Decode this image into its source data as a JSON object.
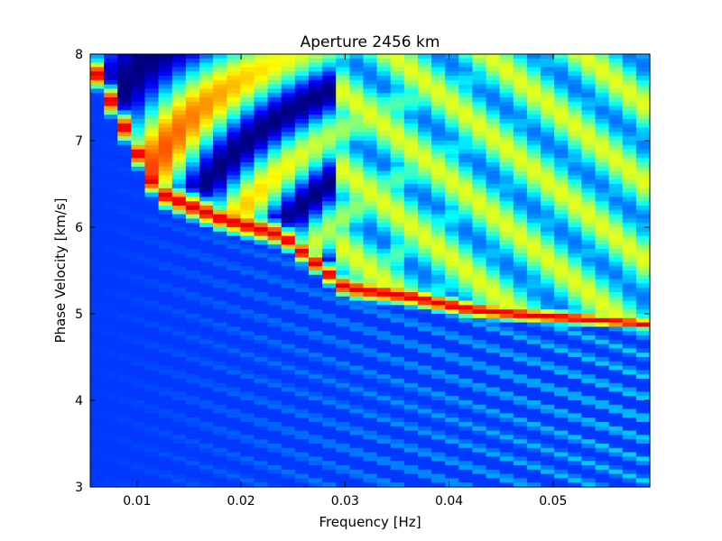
{
  "chart_data": {
    "type": "heatmap",
    "title": "Aperture 2456 km",
    "xlabel": "Frequency [Hz]",
    "ylabel": "Phase Velocity [km/s]",
    "xlim": [
      0.0055,
      0.0593
    ],
    "ylim": [
      3,
      8
    ],
    "x_ticks": [
      0.01,
      0.02,
      0.03,
      0.04,
      0.05
    ],
    "x_tick_labels": [
      "0.01",
      "0.02",
      "0.03",
      "0.04",
      "0.05"
    ],
    "y_ticks": [
      3,
      4,
      5,
      6,
      7,
      8
    ],
    "y_tick_labels": [
      "3",
      "4",
      "5",
      "6",
      "7",
      "8"
    ],
    "colormap": "jet",
    "grid": false,
    "n_freq_bins": 41,
    "freq_step_hz": 0.00131,
    "dispersion_curve": {
      "freq_hz": [
        0.006,
        0.012,
        0.018,
        0.024,
        0.03,
        0.036,
        0.042,
        0.048,
        0.054,
        0.059
      ],
      "phase_velocity_km_s": [
        7.8,
        6.4,
        6.1,
        5.9,
        5.3,
        5.2,
        5.05,
        4.98,
        4.93,
        4.88
      ]
    }
  }
}
